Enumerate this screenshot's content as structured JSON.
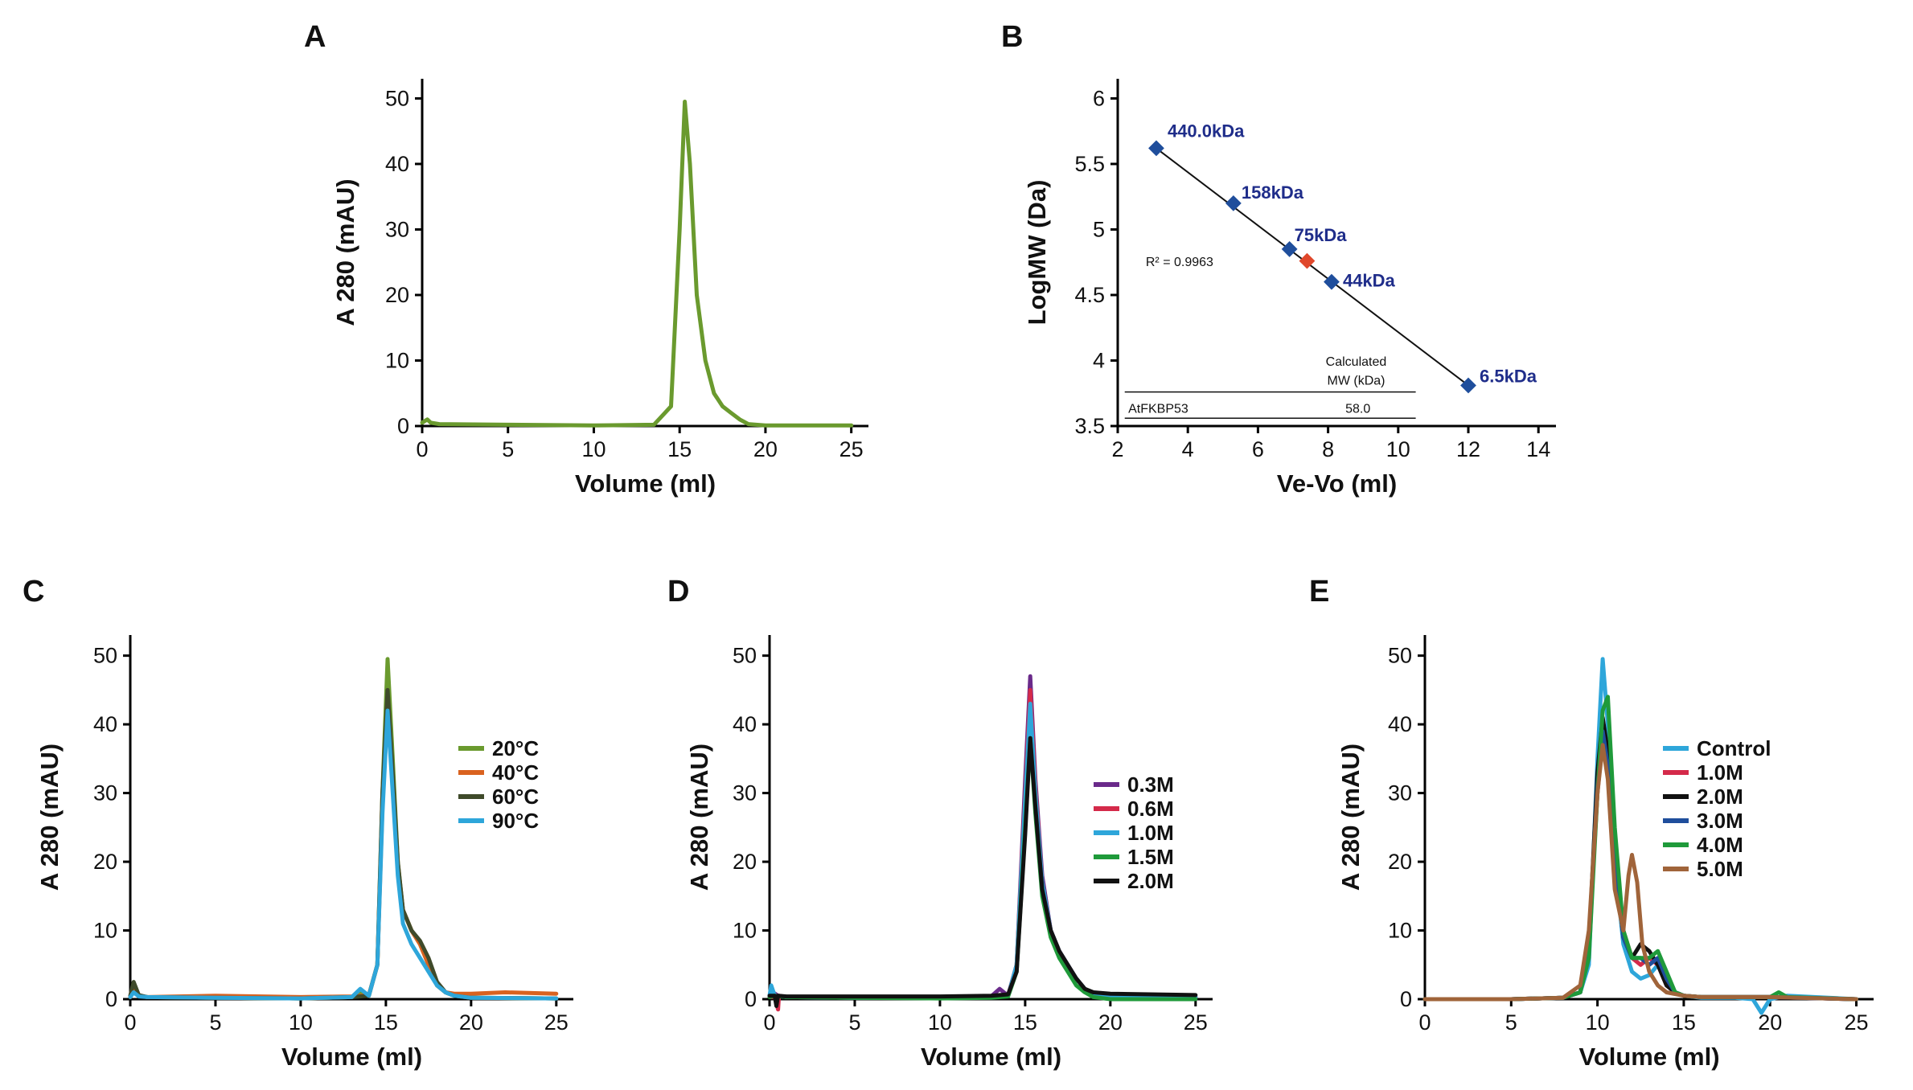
{
  "chart_data": [
    {
      "panel": "A",
      "type": "line",
      "xlabel": "Volume (ml)",
      "ylabel": "A 280 (mAU)",
      "xlim": [
        0,
        26
      ],
      "ylim": [
        0,
        53
      ],
      "xticks": [
        0,
        5,
        10,
        15,
        20,
        25
      ],
      "yticks": [
        0,
        10,
        20,
        30,
        40,
        50
      ],
      "series": [
        {
          "color": "#6a9a2e",
          "x": [
            0,
            0.3,
            0.5,
            1,
            5,
            10,
            13.5,
            14.5,
            15,
            15.3,
            15.6,
            16,
            16.5,
            17,
            17.5,
            18,
            18.5,
            19,
            20,
            25
          ],
          "y": [
            0.5,
            1,
            0.5,
            0.3,
            0.2,
            0.1,
            0.2,
            3,
            30,
            49.5,
            40,
            20,
            10,
            5,
            3,
            2,
            1,
            0.3,
            0.1,
            0.1
          ]
        }
      ]
    },
    {
      "panel": "B",
      "type": "scatter",
      "xlabel": "Ve-Vo (ml)",
      "ylabel": "LogMW (Da)",
      "xlim": [
        2,
        14.5
      ],
      "ylim": [
        3.5,
        6.15
      ],
      "xticks": [
        2,
        4,
        6,
        8,
        10,
        12,
        14
      ],
      "yticks": [
        3.5,
        4,
        4.5,
        5,
        5.5,
        6
      ],
      "yticklabels": [
        "3.5",
        "4",
        "4.5",
        "5",
        "5.5",
        "6"
      ],
      "standards": [
        {
          "label": "440.0kDa",
          "x": 3.1,
          "y": 5.62
        },
        {
          "label": "158kDa",
          "x": 5.3,
          "y": 5.2
        },
        {
          "label": "75kDa",
          "x": 6.9,
          "y": 4.85
        },
        {
          "label": "44kDa",
          "x": 8.1,
          "y": 4.6
        },
        {
          "label": "6.5kDa",
          "x": 12.0,
          "y": 3.81
        }
      ],
      "sample_point": {
        "x": 7.4,
        "y": 4.76
      },
      "fit_line": {
        "x": [
          3.1,
          12.0
        ],
        "y": [
          5.62,
          3.81
        ]
      },
      "r2_text": "R² = 0.9963",
      "table": {
        "header": "Calculated",
        "header2": "MW (kDa)",
        "row_label": "AtFKBP53",
        "row_value": "58.0"
      },
      "colors": {
        "standard": "#1f4e9c",
        "sample": "#e0472b",
        "label": "#1f2d8a"
      }
    },
    {
      "panel": "C",
      "type": "line",
      "xlabel": "Volume (ml)",
      "ylabel": "A 280 (mAU)",
      "xlim": [
        0,
        26
      ],
      "ylim": [
        0,
        53
      ],
      "xticks": [
        0,
        5,
        10,
        15,
        20,
        25
      ],
      "yticks": [
        0,
        10,
        20,
        30,
        40,
        50
      ],
      "series": [
        {
          "name": "20°C",
          "color": "#6a9a2e",
          "x": [
            0,
            0.2,
            0.5,
            1,
            5,
            10,
            13,
            13.5,
            14,
            14.5,
            14.8,
            15.1,
            15.4,
            15.7,
            16,
            16.5,
            17,
            17.5,
            18,
            18.5,
            19,
            20,
            25
          ],
          "y": [
            0.3,
            2,
            0.5,
            0.3,
            0.2,
            0.1,
            0.3,
            1,
            0.5,
            5,
            30,
            49.5,
            35,
            20,
            13,
            10,
            8,
            5,
            2,
            1,
            0.5,
            0.2,
            0.1
          ]
        },
        {
          "name": "40°C",
          "color": "#d9621f",
          "x": [
            0,
            0.2,
            0.5,
            1,
            5,
            10,
            13,
            14,
            14.5,
            14.8,
            15.1,
            15.4,
            15.7,
            16,
            16.5,
            17,
            17.5,
            18,
            18.5,
            19,
            20,
            22,
            25
          ],
          "y": [
            0.3,
            1.5,
            0.5,
            0.3,
            0.5,
            0.3,
            0.4,
            0.6,
            5,
            28,
            44,
            32,
            19,
            13,
            10,
            8,
            5,
            2,
            1,
            0.8,
            0.8,
            1,
            0.8
          ]
        },
        {
          "name": "60°C",
          "color": "#3f4a2a",
          "x": [
            0,
            0.2,
            0.5,
            1,
            5,
            10,
            13,
            14,
            14.5,
            14.8,
            15.1,
            15.4,
            15.7,
            16,
            16.5,
            17,
            17.5,
            18,
            18.5,
            19,
            20,
            25
          ],
          "y": [
            0.5,
            2.5,
            0.6,
            0.3,
            0.2,
            0.1,
            0.3,
            0.5,
            5,
            30,
            45,
            33,
            20,
            13,
            10,
            8.5,
            6,
            2.5,
            1,
            0.5,
            0.2,
            0.1
          ]
        },
        {
          "name": "90°C",
          "color": "#2ea6da",
          "x": [
            0,
            0.2,
            0.5,
            1,
            5,
            10,
            13,
            13.5,
            14,
            14.5,
            14.8,
            15.1,
            15.4,
            15.7,
            16,
            16.5,
            17,
            17.5,
            18,
            18.5,
            19,
            20,
            25
          ],
          "y": [
            0.3,
            1,
            0.4,
            0.3,
            0.2,
            0.1,
            0.3,
            1.5,
            0.5,
            5,
            27,
            42,
            30,
            18,
            11,
            8,
            6,
            4,
            2,
            1,
            0.5,
            0.2,
            0.1
          ]
        }
      ],
      "legend": "right"
    },
    {
      "panel": "D",
      "type": "line",
      "xlabel": "Volume (ml)",
      "ylabel": "A 280 (mAU)",
      "xlim": [
        0,
        26
      ],
      "ylim": [
        0,
        53
      ],
      "xticks": [
        0,
        5,
        10,
        15,
        20,
        25
      ],
      "yticks": [
        0,
        10,
        20,
        30,
        40,
        50
      ],
      "series": [
        {
          "name": "0.3M",
          "color": "#6a2a8a",
          "x": [
            0,
            0.2,
            0.5,
            1,
            5,
            10,
            13,
            13.5,
            14,
            14.5,
            15,
            15.3,
            15.6,
            16,
            16.5,
            17,
            17.5,
            18,
            18.5,
            19,
            20,
            25
          ],
          "y": [
            0.5,
            1,
            0.5,
            0.3,
            0.2,
            0.2,
            0.4,
            1.5,
            0.5,
            5,
            32,
            47,
            32,
            18,
            10,
            7,
            5,
            3,
            1.5,
            0.8,
            0.4,
            0.3
          ]
        },
        {
          "name": "0.6M",
          "color": "#d42a4a",
          "x": [
            0,
            0.3,
            0.5,
            0.55,
            1,
            5,
            10,
            13,
            14,
            14.5,
            15,
            15.3,
            15.6,
            16,
            16.5,
            17,
            17.5,
            18,
            18.5,
            19,
            20,
            25
          ],
          "y": [
            0.3,
            0.3,
            -1.5,
            0.5,
            0.3,
            0.3,
            0.3,
            0.4,
            0.6,
            5,
            30,
            45,
            31,
            17,
            10,
            7,
            5,
            3,
            1.5,
            0.8,
            0.5,
            0.3
          ]
        },
        {
          "name": "1.0M",
          "color": "#2ea6da",
          "x": [
            0,
            0.1,
            0.3,
            1,
            5,
            10,
            13,
            14,
            14.5,
            15,
            15.3,
            15.6,
            16,
            16.5,
            17,
            17.5,
            18,
            18.5,
            19,
            20,
            25
          ],
          "y": [
            0.5,
            2,
            0.5,
            0.3,
            0.2,
            0.2,
            0.3,
            0.5,
            5,
            29,
            43,
            30,
            17,
            10,
            7,
            5,
            3,
            1.5,
            0.8,
            0.4,
            0.3
          ]
        },
        {
          "name": "1.5M",
          "color": "#1f9a3a",
          "x": [
            0,
            0.3,
            1,
            5,
            10,
            13,
            14,
            14.5,
            15,
            15.3,
            15.6,
            16,
            16.5,
            17,
            17.5,
            18,
            18.5,
            19,
            20,
            25
          ],
          "y": [
            0.3,
            0.5,
            0.3,
            0.2,
            0.1,
            0.2,
            0.4,
            4,
            25,
            38,
            27,
            15,
            9,
            6,
            4,
            2,
            1,
            0.3,
            0,
            0
          ]
        },
        {
          "name": "2.0M",
          "color": "#111111",
          "x": [
            0,
            0.3,
            0.4,
            0.5,
            1,
            5,
            10,
            13,
            14,
            14.5,
            15,
            15.3,
            15.6,
            16,
            16.5,
            17,
            17.5,
            18,
            18.5,
            19,
            20,
            25
          ],
          "y": [
            0.5,
            0.5,
            -1,
            0.5,
            0.4,
            0.4,
            0.4,
            0.5,
            0.7,
            4,
            24,
            38,
            28,
            16,
            10,
            7,
            5,
            3,
            1.5,
            1,
            0.8,
            0.6
          ]
        }
      ],
      "legend": "right"
    },
    {
      "panel": "E",
      "type": "line",
      "xlabel": "Volume (ml)",
      "ylabel": "A 280 (mAU)",
      "xlim": [
        0,
        26
      ],
      "ylim": [
        0,
        53
      ],
      "xticks": [
        0,
        5,
        10,
        15,
        20,
        25
      ],
      "yticks": [
        0,
        10,
        20,
        30,
        40,
        50
      ],
      "series": [
        {
          "name": "Control",
          "color": "#2ea6da",
          "x": [
            0,
            1,
            5,
            8,
            9,
            9.5,
            10,
            10.3,
            10.6,
            11,
            11.5,
            12,
            12.5,
            13,
            13.5,
            14,
            14.5,
            15,
            16,
            18,
            19,
            19.5,
            20,
            21,
            25
          ],
          "y": [
            0,
            0,
            0,
            0.2,
            1,
            5,
            35,
            49.5,
            40,
            20,
            8,
            4,
            3,
            3.5,
            5,
            3,
            1,
            0.5,
            0.2,
            0.2,
            0,
            -2,
            0,
            0.5,
            0
          ]
        },
        {
          "name": "1.0M",
          "color": "#d42a4a",
          "x": [
            0,
            1,
            5,
            8,
            9,
            9.5,
            10,
            10.3,
            10.6,
            11,
            11.5,
            12,
            12.5,
            13,
            13.5,
            14,
            14.5,
            15,
            16,
            20,
            25
          ],
          "y": [
            0,
            0,
            0,
            0.2,
            1,
            8,
            30,
            38,
            35,
            22,
            10,
            6,
            5,
            6,
            5,
            2,
            1,
            0.5,
            0.3,
            0.3,
            0
          ]
        },
        {
          "name": "2.0M",
          "color": "#111111",
          "x": [
            0,
            1,
            5,
            8,
            9,
            9.5,
            10,
            10.3,
            10.6,
            11,
            11.5,
            12,
            12.5,
            13,
            13.5,
            14,
            14.5,
            15,
            16,
            20,
            25
          ],
          "y": [
            0,
            0,
            0,
            0.2,
            1,
            8,
            33,
            41,
            36,
            20,
            9,
            6,
            8,
            7,
            5,
            2,
            1,
            0.5,
            0.3,
            0.3,
            0
          ]
        },
        {
          "name": "3.0M",
          "color": "#1f4e9c",
          "x": [
            0,
            1,
            5,
            8,
            9,
            9.5,
            10,
            10.3,
            10.6,
            11,
            11.5,
            12,
            12.5,
            13,
            13.5,
            14,
            14.5,
            15,
            16,
            20,
            25
          ],
          "y": [
            0,
            0,
            0,
            0.2,
            1,
            8,
            31,
            39,
            34,
            20,
            9,
            6,
            6,
            5,
            6,
            3,
            1,
            0.5,
            0.3,
            0.3,
            0
          ]
        },
        {
          "name": "4.0M",
          "color": "#1f9a3a",
          "x": [
            0,
            1,
            5,
            8,
            9,
            9.5,
            10,
            10.3,
            10.6,
            11,
            11.5,
            12,
            12.5,
            13,
            13.5,
            14,
            14.5,
            15,
            16,
            20,
            20.5,
            21,
            25
          ],
          "y": [
            0,
            0,
            0,
            0.2,
            1,
            6,
            30,
            42,
            44,
            25,
            10,
            6,
            6,
            6,
            7,
            4,
            1,
            0.5,
            0.3,
            0.3,
            1,
            0.3,
            0
          ]
        },
        {
          "name": "5.0M",
          "color": "#a0643a",
          "x": [
            0,
            1,
            5,
            8,
            9,
            9.5,
            10,
            10.3,
            10.6,
            11,
            11.5,
            11.8,
            12,
            12.3,
            12.6,
            13,
            13.5,
            14,
            15,
            16,
            20,
            25
          ],
          "y": [
            0,
            0,
            0,
            0.2,
            2,
            10,
            30,
            37,
            32,
            16,
            10,
            18,
            21,
            17,
            8,
            4,
            2,
            1,
            0.5,
            0.3,
            0.3,
            0
          ]
        }
      ],
      "legend": "right"
    }
  ]
}
